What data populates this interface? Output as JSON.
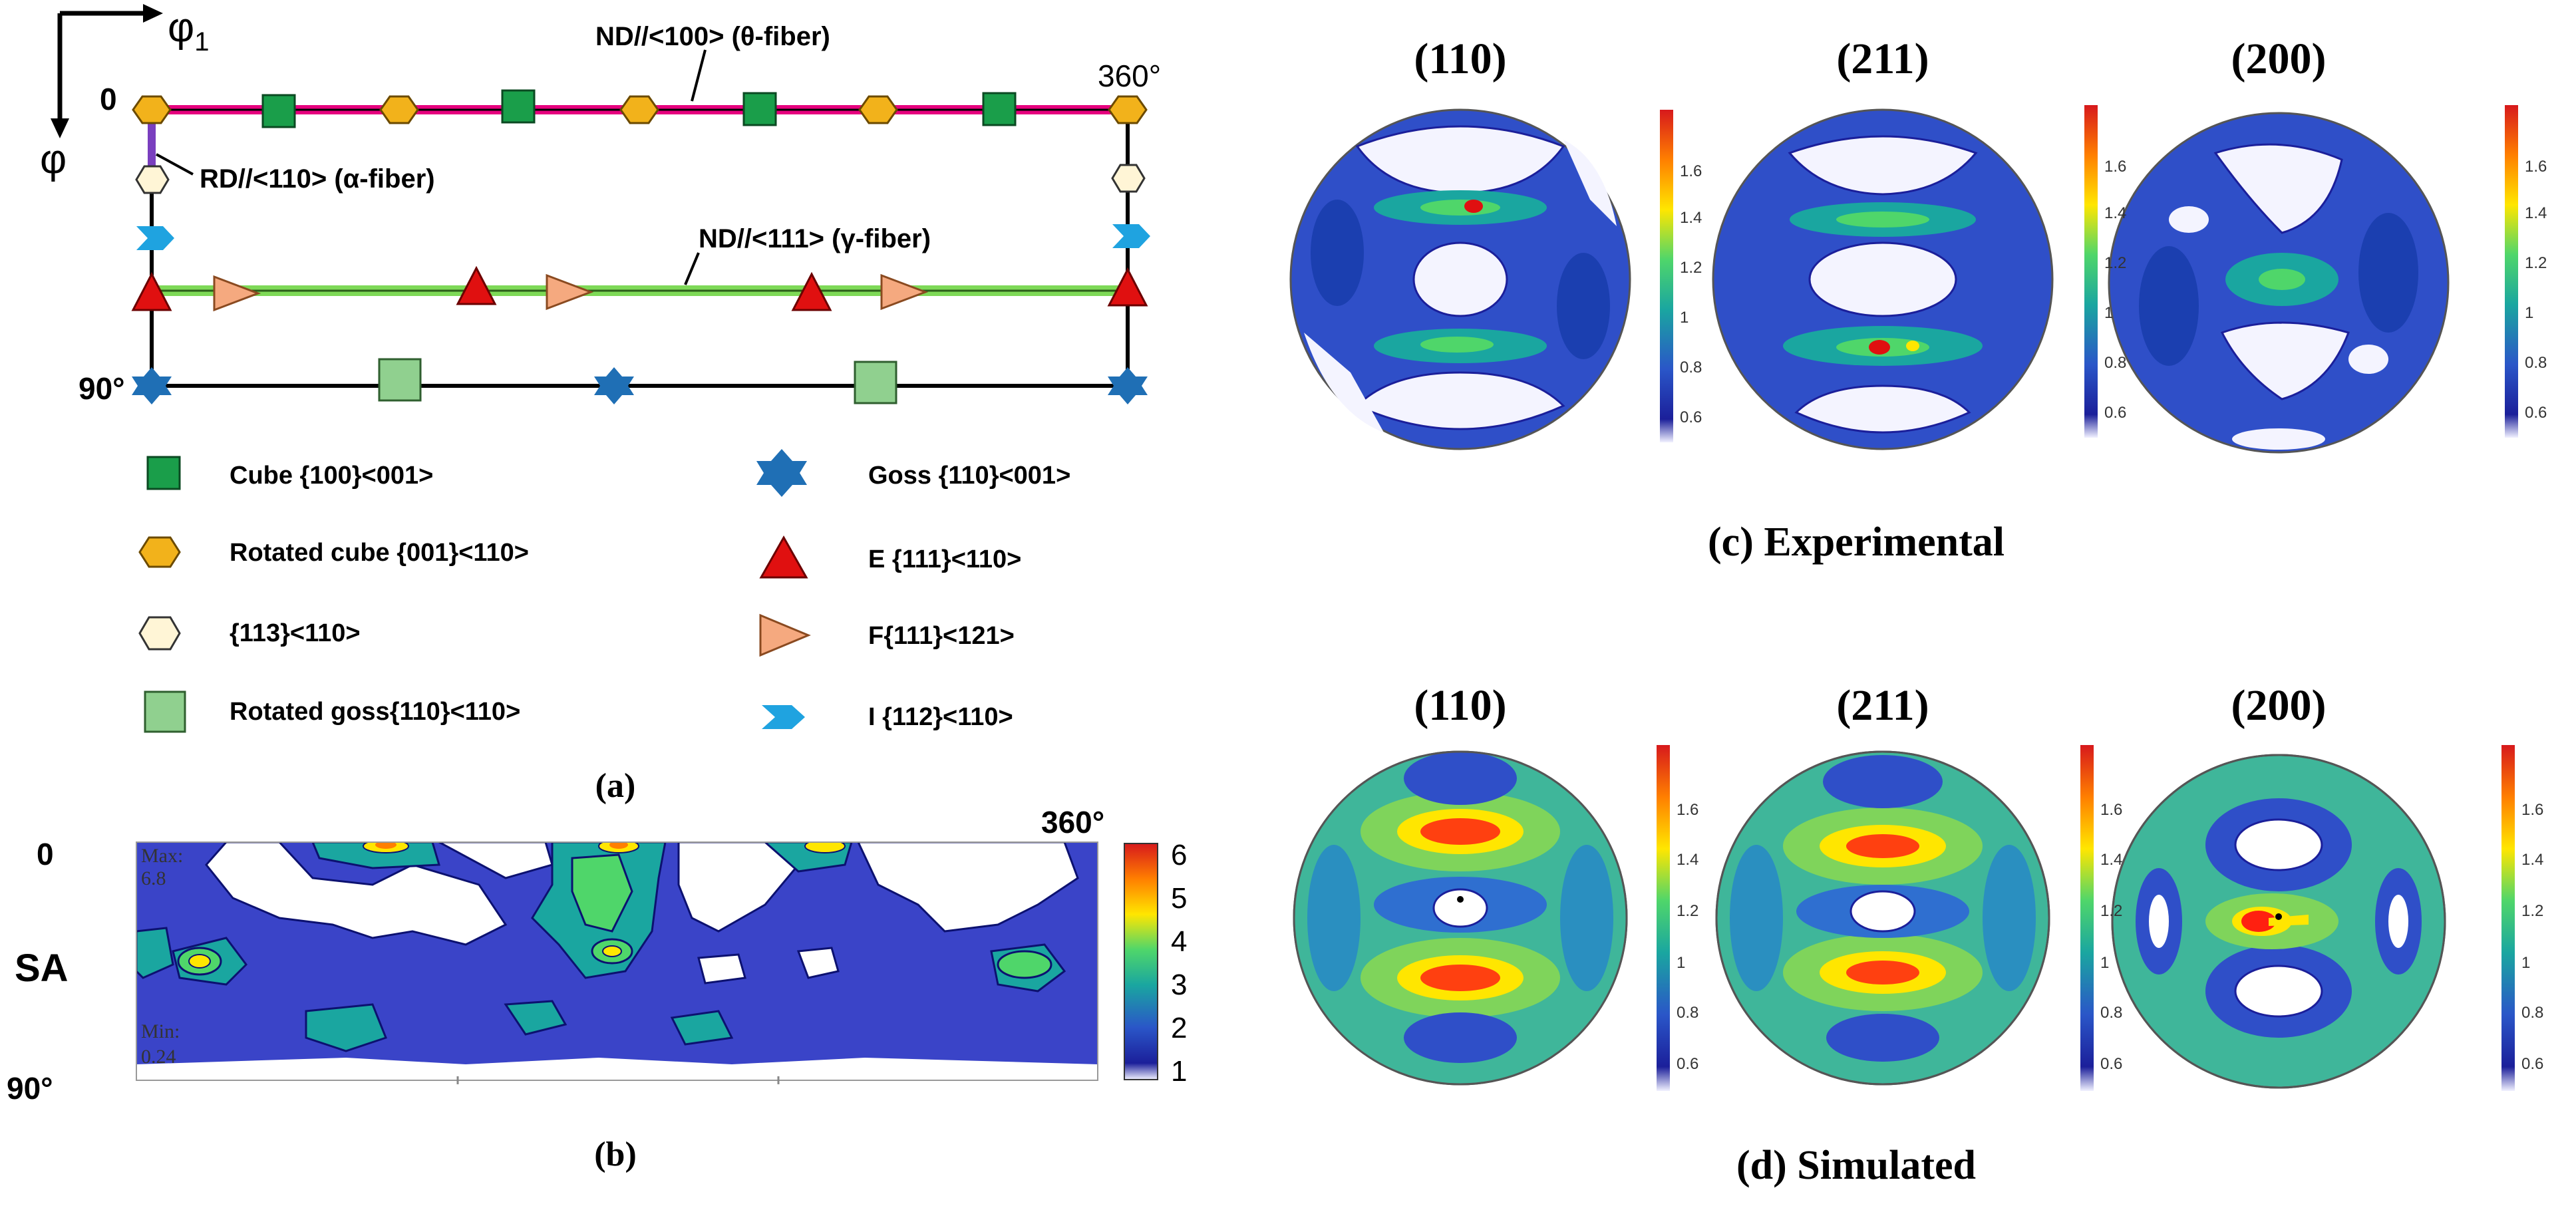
{
  "panel_a": {
    "axis_phi1": "φ",
    "axis_phi1_sub": "1",
    "axis_phi": "φ",
    "left_top": "0",
    "left_bottom": "90°",
    "right_top": "360°",
    "fiber_theta": "ND//<100> (θ-fiber)",
    "fiber_alpha": "RD//<110> (α-fiber)",
    "fiber_gamma": "ND//<111> (γ-fiber)",
    "caption": "(a)",
    "legend": [
      {
        "label": "Cube {100}<001>",
        "icon": "cube-icon"
      },
      {
        "label": "Rotated cube {001}<110>",
        "icon": "rotated-cube-icon"
      },
      {
        "label": "{113}<110>",
        "icon": "hexagon-icon"
      },
      {
        "label": "Rotated goss{110}<110>",
        "icon": "square-icon"
      },
      {
        "label": "Goss {110}<001>",
        "icon": "star-icon"
      },
      {
        "label": "E {111}<110>",
        "icon": "triangle-up-icon"
      },
      {
        "label": "F{111}<121>",
        "icon": "triangle-right-icon"
      },
      {
        "label": "I {112}<110>",
        "icon": "chevron-icon"
      }
    ],
    "colors": {
      "theta_fiber": "#e6007e",
      "alpha_fiber": "#7a3fbf",
      "gamma_fiber": "#7ed957",
      "cube": "#1a9e4a",
      "rotated_cube": "#f2b21b",
      "hexagon": "#fff5d6",
      "rotated_goss": "#90d08f",
      "goss": "#1f6fb5",
      "e_triangle": "#e01010",
      "f_triangle": "#f5a97f",
      "i_chevron": "#1fa3e0"
    }
  },
  "panel_b": {
    "caption": "(b)",
    "left_top": "0",
    "left_bottom": "90°",
    "right_top": "360°",
    "row_label": "SA",
    "max_label": "Max:",
    "max_value": "6.8",
    "min_label": "Min:",
    "min_value": "0.24",
    "colorbar_ticks": [
      "6",
      "5",
      "4",
      "3",
      "2",
      "1"
    ]
  },
  "panel_c": {
    "caption": "(c) Experimental",
    "titles": [
      "(110)",
      "(211)",
      "(200)"
    ],
    "colorbar_ticks": [
      "1.6",
      "1.4",
      "1.2",
      "1",
      "0.8",
      "0.6"
    ]
  },
  "panel_d": {
    "caption": "(d) Simulated",
    "titles": [
      "(110)",
      "(211)",
      "(200)"
    ],
    "colorbar_ticks": [
      "1.6",
      "1.4",
      "1.2",
      "1",
      "0.8",
      "0.6"
    ]
  }
}
